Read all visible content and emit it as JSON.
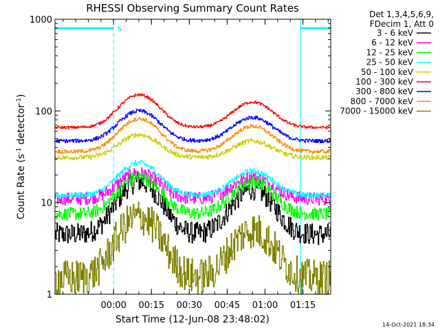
{
  "chart_data": {
    "type": "line",
    "title": "RHESSI Observing Summary Count Rates",
    "xlabel": "Start Time (12-Jun-08 23:48:02)",
    "ylabel_main": "Count Rate (s",
    "ylabel_sup1": "-1",
    "ylabel_mid": " detector",
    "ylabel_sup2": "-1",
    "ylabel_end": ")",
    "y_scale": "log",
    "ylim": [
      1,
      1000
    ],
    "xlim_minutes": [
      -11.2,
      98
    ],
    "x_ticks": [
      {
        "label": "00:00",
        "m": 12
      },
      {
        "label": "00:15",
        "m": 27
      },
      {
        "label": "00:30",
        "m": 42
      },
      {
        "label": "00:45",
        "m": 57
      },
      {
        "label": "01:00",
        "m": 72
      },
      {
        "label": "01:15",
        "m": 87
      }
    ],
    "y_ticks": [
      {
        "label": "1",
        "v": 1
      },
      {
        "label": "10",
        "v": 10
      },
      {
        "label": "100",
        "v": 100
      },
      {
        "label": "1000",
        "v": 1000
      }
    ],
    "legend_header": [
      "Det 1,3,4,5,6,9,",
      "FDecim 1, Att 0"
    ],
    "legend_position": "right-outside",
    "series": [
      {
        "name": "3 - 6 keV",
        "color": "#000000",
        "baseline": 4.5,
        "peak1": 17,
        "peak2": 14,
        "noise": 0.12
      },
      {
        "name": "6 - 12 keV",
        "color": "#ff00ff",
        "baseline": 11,
        "peak1": 21,
        "peak2": 19,
        "noise": 0.07
      },
      {
        "name": "12 - 25 keV",
        "color": "#00ff00",
        "baseline": 7.5,
        "peak1": 19,
        "peak2": 17,
        "noise": 0.07
      },
      {
        "name": "25 - 50 keV",
        "color": "#00ffff",
        "baseline": 12,
        "peak1": 27,
        "peak2": 22,
        "noise": 0.03
      },
      {
        "name": "50 - 100 keV",
        "color": "#cccc00",
        "baseline": 31,
        "peak1": 55,
        "peak2": 47,
        "noise": 0.025
      },
      {
        "name": "100 - 300 keV",
        "color": "#ff0000",
        "baseline": 66,
        "peak1": 150,
        "peak2": 125,
        "noise": 0.015
      },
      {
        "name": "300 - 800 keV",
        "color": "#0000ff",
        "baseline": 47,
        "peak1": 100,
        "peak2": 85,
        "noise": 0.02
      },
      {
        "name": "800 - 7000 keV",
        "color": "#ff8800",
        "baseline": 36,
        "peak1": 82,
        "peak2": 68,
        "noise": 0.02
      },
      {
        "name": "7000 - 15000 keV",
        "color": "#808000",
        "baseline": 1.5,
        "peak1": 7,
        "peak2": 5,
        "noise": 0.2
      }
    ],
    "peak1_minute": 22,
    "peak2_minute": 67,
    "peak_width_minutes": 10,
    "attenuator_marks": {
      "color": "#00ffff",
      "intervals": [
        [
          -11.2,
          12
        ],
        [
          86,
          98
        ]
      ],
      "label": "N",
      "solid_line_minute": 86
    }
  },
  "timestamp": "14-Oct-2021 18:34"
}
